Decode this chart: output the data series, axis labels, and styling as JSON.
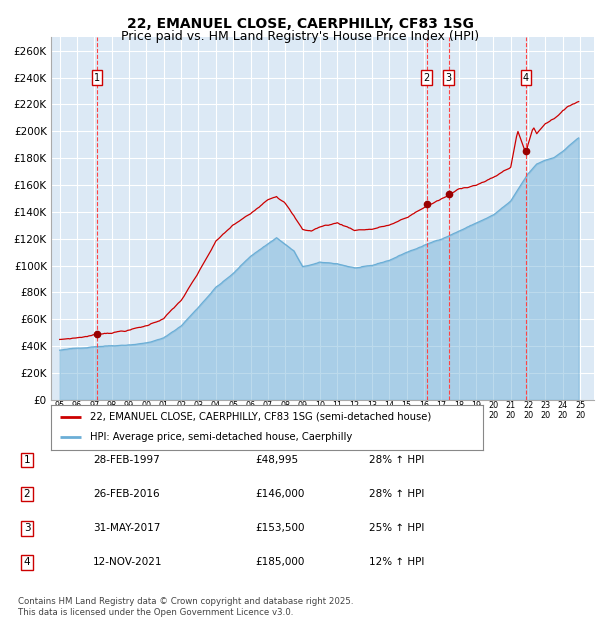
{
  "title": "22, EMANUEL CLOSE, CAERPHILLY, CF83 1SG",
  "subtitle": "Price paid vs. HM Land Registry's House Price Index (HPI)",
  "legend_line1": "22, EMANUEL CLOSE, CAERPHILLY, CF83 1SG (semi-detached house)",
  "legend_line2": "HPI: Average price, semi-detached house, Caerphilly",
  "footer": "Contains HM Land Registry data © Crown copyright and database right 2025.\nThis data is licensed under the Open Government Licence v3.0.",
  "transactions": [
    {
      "num": 1,
      "date": "28-FEB-1997",
      "price": 48995,
      "pct": "28%",
      "x_year": 1997.15
    },
    {
      "num": 2,
      "date": "26-FEB-2016",
      "price": 146000,
      "pct": "28%",
      "x_year": 2016.15
    },
    {
      "num": 3,
      "date": "31-MAY-2017",
      "price": 153500,
      "pct": "25%",
      "x_year": 2017.42
    },
    {
      "num": 4,
      "date": "12-NOV-2021",
      "price": 185000,
      "pct": "12%",
      "x_year": 2021.87
    }
  ],
  "hpi_color": "#6baed6",
  "price_color": "#cc0000",
  "vline_color": "#ff4444",
  "dot_color": "#990000",
  "plot_bg_color": "#dce9f5",
  "grid_color": "#ffffff",
  "ylim": [
    0,
    270000
  ],
  "yticks": [
    0,
    20000,
    40000,
    60000,
    80000,
    100000,
    120000,
    140000,
    160000,
    180000,
    200000,
    220000,
    240000,
    260000
  ],
  "xlim_start": 1994.5,
  "xlim_end": 2025.8,
  "title_fontsize": 10,
  "subtitle_fontsize": 9
}
